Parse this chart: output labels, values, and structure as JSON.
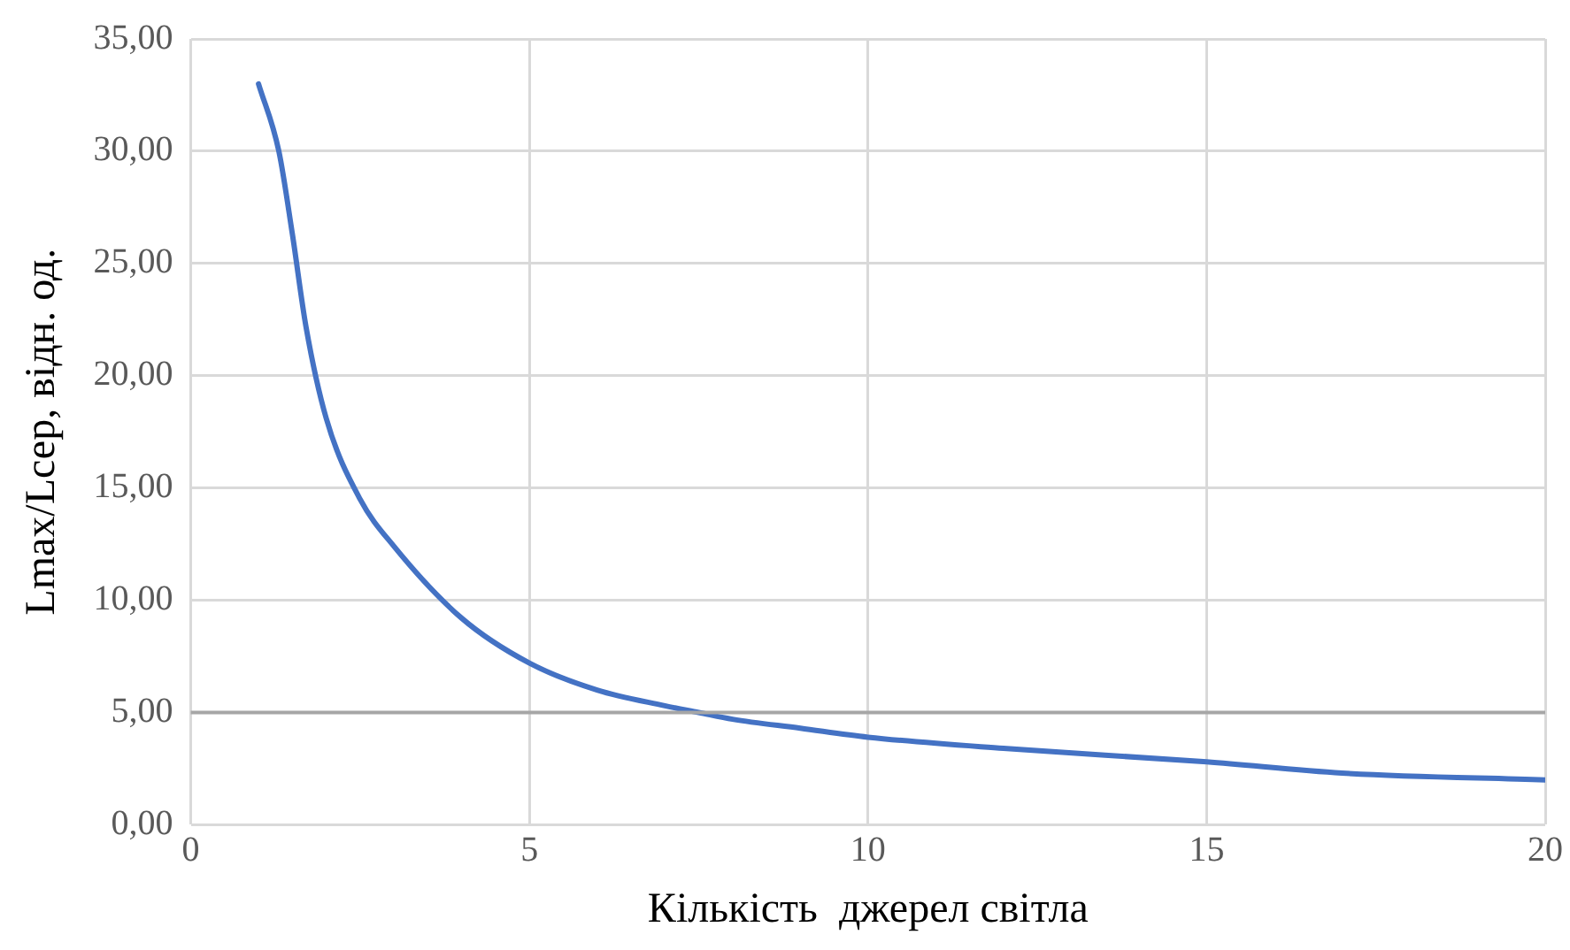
{
  "chart_data": {
    "type": "line",
    "xlabel": "Кількість  джерел світла",
    "ylabel": "Lmax/Lсер, відн. од.",
    "xlim": [
      0,
      20
    ],
    "xticks": [
      0,
      5,
      10,
      15,
      20
    ],
    "ylim": [
      0,
      35
    ],
    "yticks": [
      {
        "value": 0,
        "label": "0,00"
      },
      {
        "value": 5,
        "label": "5,00"
      },
      {
        "value": 10,
        "label": "10,00"
      },
      {
        "value": 15,
        "label": "15,00"
      },
      {
        "value": 20,
        "label": "20,00"
      },
      {
        "value": 25,
        "label": "25,00"
      },
      {
        "value": 30,
        "label": "30,00"
      },
      {
        "value": 35,
        "label": "35,00"
      }
    ],
    "grid": true,
    "legend": false,
    "marker": "none",
    "line_style": "solid",
    "series": [
      {
        "color": "#4472c4",
        "x": [
          1,
          1.3,
          1.5,
          1.7,
          2,
          2.5,
          3,
          4,
          5,
          6,
          7,
          7.5,
          8,
          9,
          10,
          12,
          15,
          17,
          20
        ],
        "values": [
          33,
          30,
          26.3,
          22.2,
          18.1,
          14.5,
          12.4,
          9.2,
          7.2,
          6.0,
          5.3,
          5.0,
          4.7,
          4.3,
          3.9,
          3.4,
          2.8,
          2.3,
          2.0
        ]
      }
    ],
    "ref_lines": [
      {
        "axis": "y",
        "value": 5,
        "color": "#a6a6a6",
        "line_style": "solid"
      }
    ]
  }
}
